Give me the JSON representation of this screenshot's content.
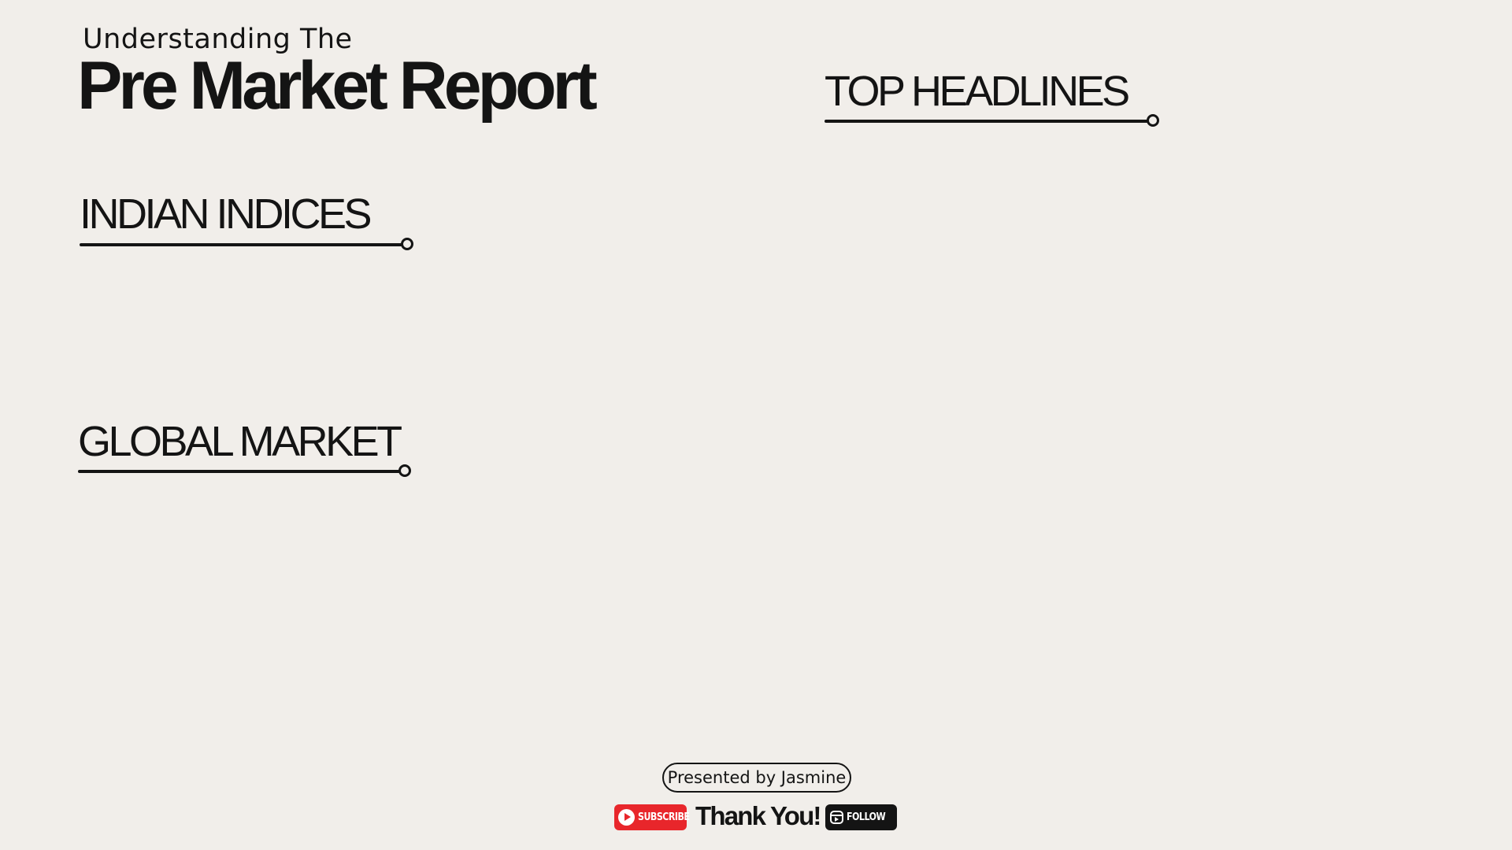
{
  "header": {
    "kicker": "Understanding The",
    "title": "Pre Market Report"
  },
  "sections": {
    "indian_indices": "INDIAN INDICES",
    "global_market": "GLOBAL MARKET",
    "top_headlines": "TOP HEADLINES"
  },
  "footer": {
    "presenter": "Presented by Jasmine",
    "subscribe_label": "SUBSCRIBE",
    "thanks": "Thank You!",
    "follow_label": "FOLLOW"
  },
  "icons": {
    "subscribe": "youtube-play-icon",
    "follow": "instagram-reels-icon"
  },
  "colors": {
    "background": "#f1eeea",
    "text": "#141414",
    "subscribe": "#e8262b",
    "follow": "#141414"
  }
}
